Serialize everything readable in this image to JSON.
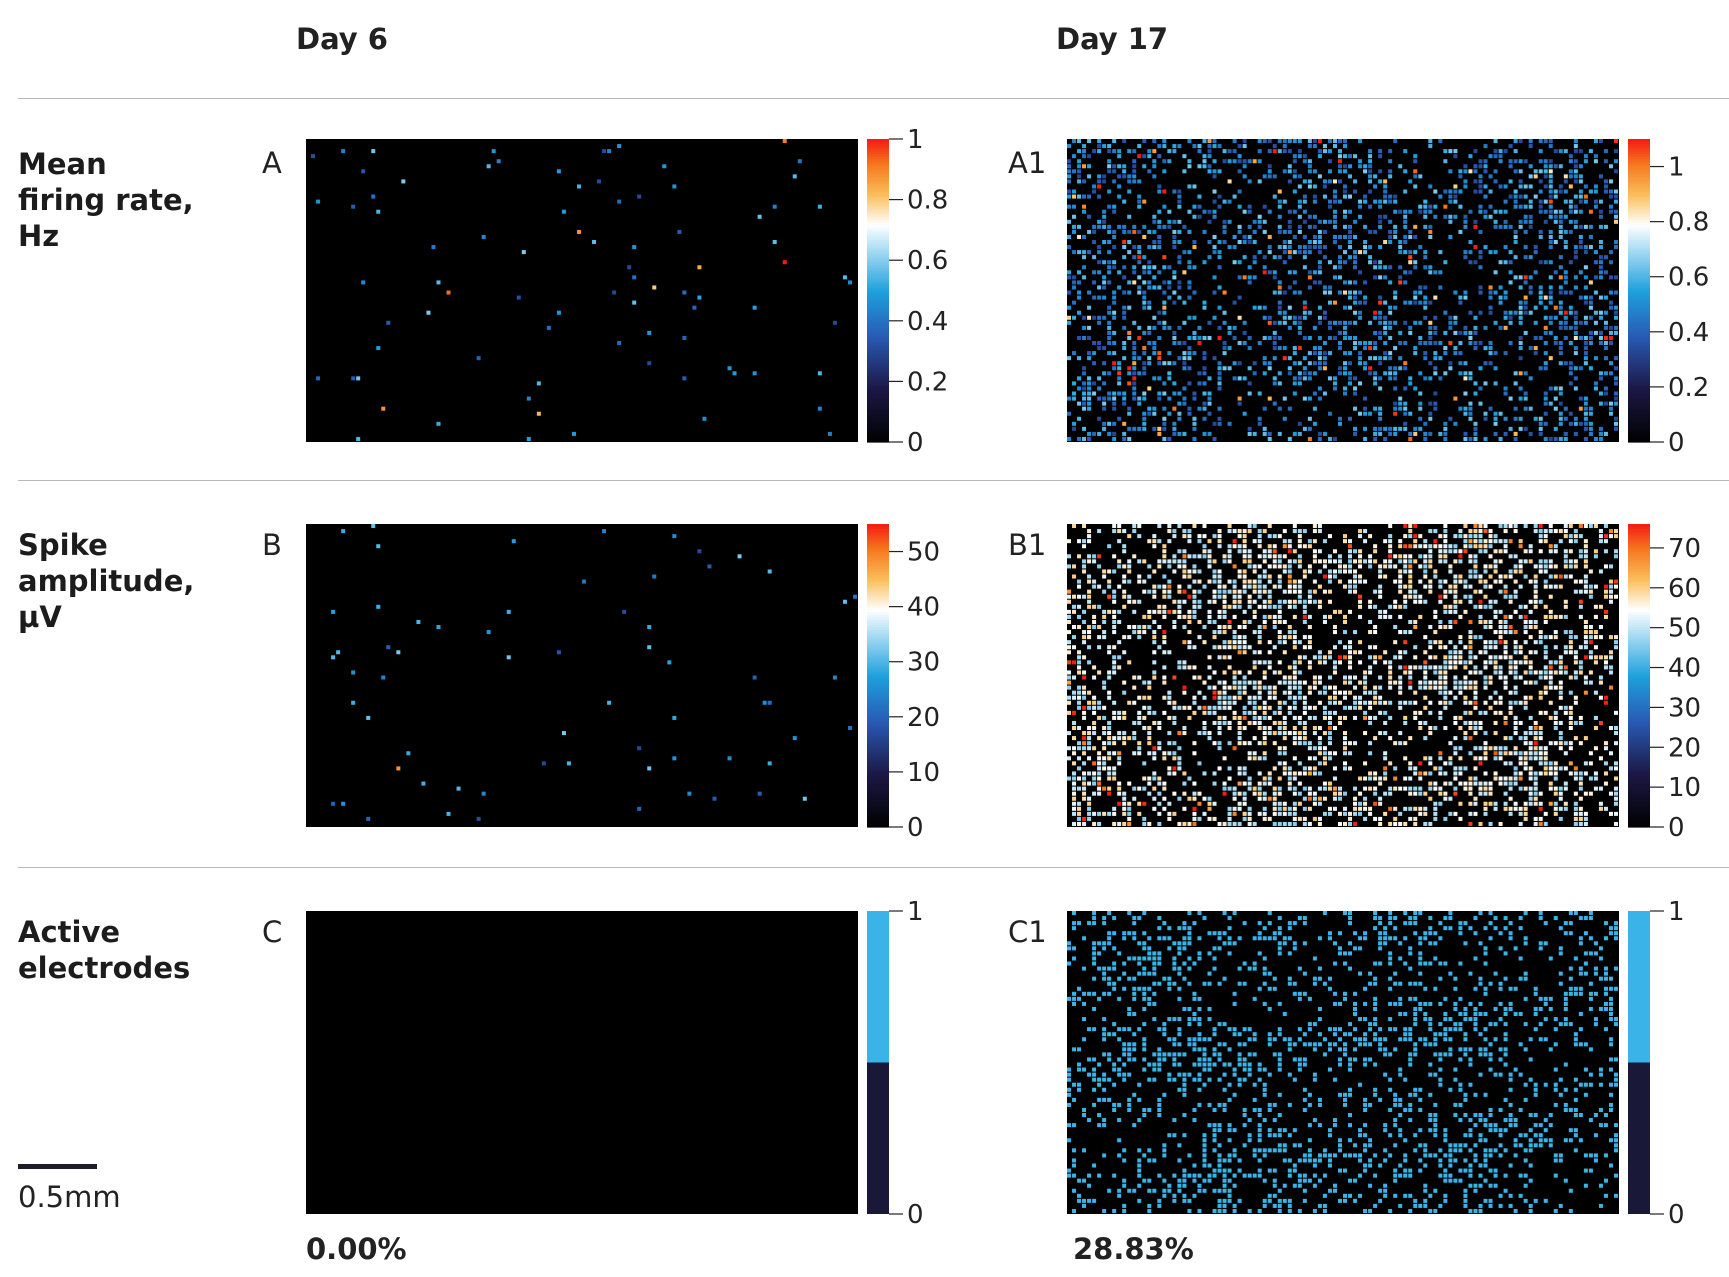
{
  "columns": [
    {
      "label": "Day 6"
    },
    {
      "label": "Day 17"
    }
  ],
  "rows": [
    {
      "label_lines": [
        "Mean",
        "firing rate,",
        "Hz"
      ]
    },
    {
      "label_lines": [
        "Spike",
        "amplitude,",
        "µV"
      ]
    },
    {
      "label_lines": [
        "Active",
        "electrodes"
      ]
    }
  ],
  "percentages": [
    "0.00%",
    "28.83%"
  ],
  "scale_bar": {
    "label": "0.5mm"
  },
  "colors": {
    "background": "#000000",
    "active": "#3ab4e8",
    "inactive": "#1a1838"
  },
  "chart_data": [
    {
      "id": "A",
      "panel_label": "A",
      "type": "heatmap",
      "description_of_content": "Sparse isolated active electrodes on black",
      "colorbar": {
        "ticks": [
          0,
          0.2,
          0.4,
          0.6,
          0.8,
          1
        ],
        "tick_labels": [
          "0",
          "0.2",
          "0.4",
          "0.6",
          "0.8",
          "1"
        ],
        "range": [
          0,
          1
        ]
      },
      "density": 0.01
    },
    {
      "id": "A1",
      "panel_label": "A1",
      "type": "heatmap",
      "colorbar": {
        "ticks": [
          0,
          0.2,
          0.4,
          0.6,
          0.8,
          1
        ],
        "tick_labels": [
          "0",
          "0.2",
          "0.4",
          "0.6",
          "0.8",
          "1"
        ],
        "range": [
          0,
          1.1
        ]
      },
      "density": 0.35
    },
    {
      "id": "B",
      "panel_label": "B",
      "type": "heatmap",
      "colorbar": {
        "ticks": [
          0,
          10,
          20,
          30,
          40,
          50
        ],
        "tick_labels": [
          "0",
          "10",
          "20",
          "30",
          "40",
          "50"
        ],
        "range": [
          0,
          55
        ]
      },
      "density": 0.01
    },
    {
      "id": "B1",
      "panel_label": "B1",
      "type": "heatmap",
      "colorbar": {
        "ticks": [
          0,
          10,
          20,
          30,
          40,
          50,
          60,
          70
        ],
        "tick_labels": [
          "0",
          "10",
          "20",
          "30",
          "40",
          "50",
          "60",
          "70"
        ],
        "range": [
          0,
          76
        ]
      },
      "density": 0.45
    },
    {
      "id": "C",
      "panel_label": "C",
      "type": "heatmap",
      "colorbar": {
        "ticks": [
          0,
          1
        ],
        "tick_labels": [
          "0",
          "1"
        ],
        "range": [
          0,
          1
        ],
        "binary": true
      },
      "density": 0.0
    },
    {
      "id": "C1",
      "panel_label": "C1",
      "type": "heatmap",
      "colorbar": {
        "ticks": [
          0,
          1
        ],
        "tick_labels": [
          "0",
          "1"
        ],
        "range": [
          0,
          1
        ],
        "binary": true
      },
      "density": 0.2883
    }
  ]
}
